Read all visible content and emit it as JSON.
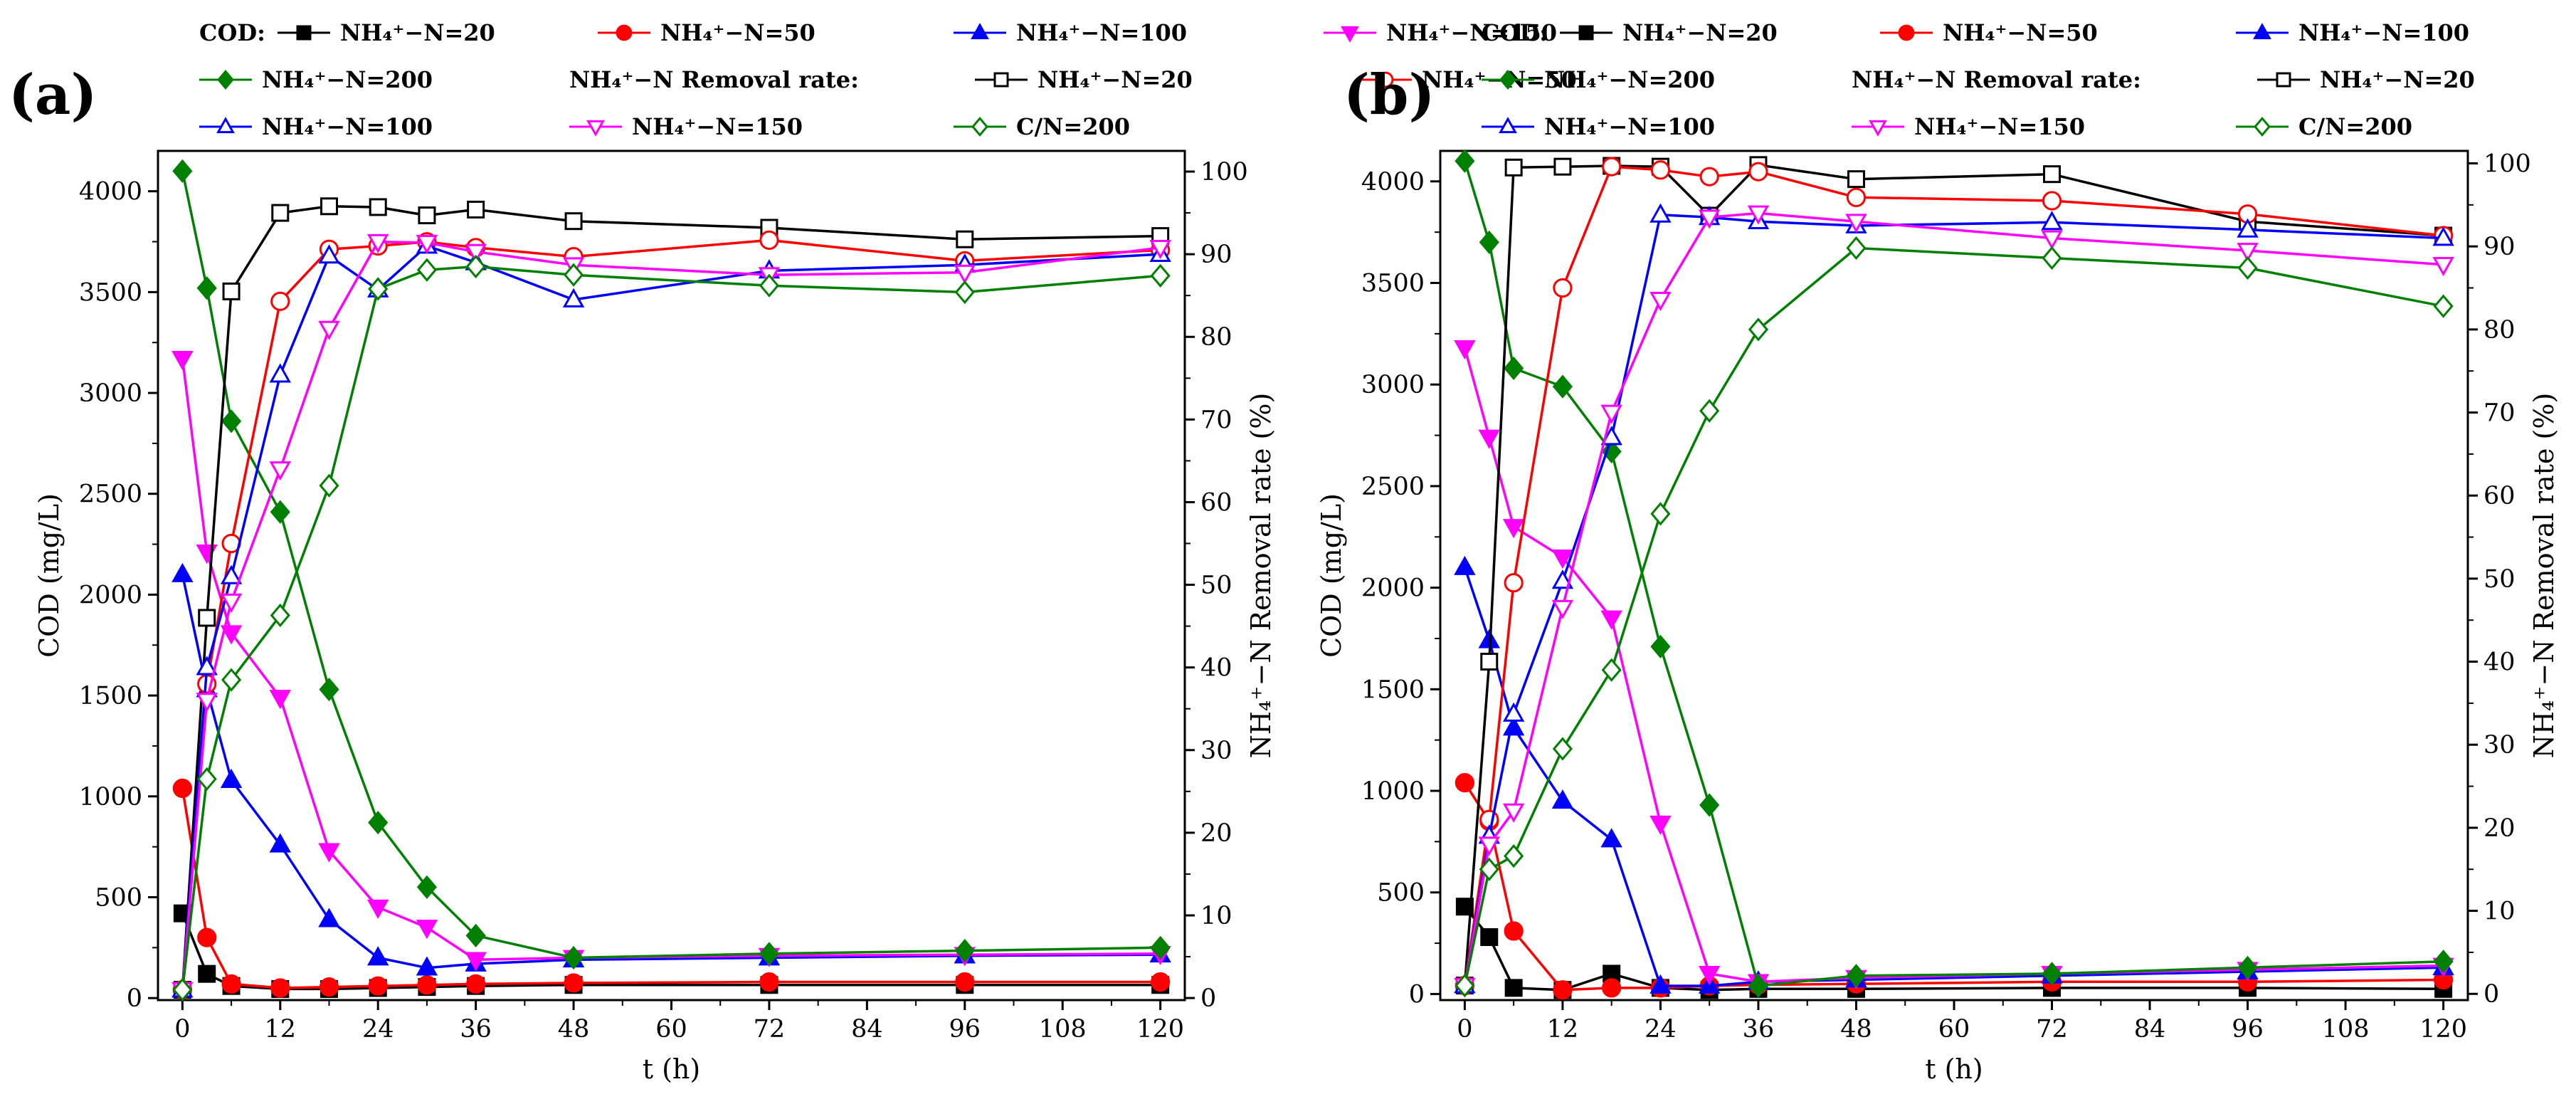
{
  "figure": {
    "panel_labels": [
      "(a)",
      "(b)"
    ]
  },
  "legend": {
    "cod_title": "COD:",
    "removal_title": "NH₄⁺−N Removal rate:",
    "entries": [
      "NH₄⁺−N=20",
      "NH₄⁺−N=50",
      "NH₄⁺−N=100",
      "NH₄⁺−N=150",
      "NH₄⁺−N=200"
    ],
    "removal_last_entry": "C/N=200"
  },
  "chart_data": [
    {
      "type": "line",
      "panel": "(a)",
      "xlabel": "t (h)",
      "ylabel_left": "COD (mg/L)",
      "ylabel_right": "NH₄⁺−N Removal rate (%)",
      "xlim": [
        -3,
        123
      ],
      "ylim_left": [
        -10,
        4200
      ],
      "ylim_right": [
        -0.25,
        102.5
      ],
      "x_ticks": [
        0,
        12,
        24,
        36,
        48,
        60,
        72,
        84,
        96,
        108,
        120
      ],
      "y_ticks_left": [
        0,
        500,
        1000,
        1500,
        2000,
        2500,
        3000,
        3500,
        4000
      ],
      "y_ticks_right": [
        0,
        10,
        20,
        30,
        40,
        50,
        60,
        70,
        80,
        90,
        100
      ],
      "series": [
        {
          "name": "NH₄⁺−N=20",
          "group": "COD",
          "axis": "left",
          "color": "#000000",
          "marker": "square",
          "filled": true,
          "x": [
            0,
            3,
            6,
            12,
            18,
            24,
            30,
            36,
            48,
            72,
            96,
            120
          ],
          "y": [
            420,
            120,
            60,
            45,
            45,
            50,
            55,
            60,
            65,
            65,
            65,
            65
          ]
        },
        {
          "name": "NH₄⁺−N=50",
          "group": "COD",
          "axis": "left",
          "color": "#ff0000",
          "marker": "circle",
          "filled": true,
          "x": [
            0,
            3,
            6,
            12,
            18,
            24,
            30,
            36,
            48,
            72,
            96,
            120
          ],
          "y": [
            1040,
            300,
            70,
            50,
            55,
            60,
            65,
            70,
            75,
            80,
            80,
            80
          ]
        },
        {
          "name": "NH₄⁺−N=100",
          "group": "COD",
          "axis": "left",
          "color": "#0000ff",
          "marker": "triangle",
          "filled": true,
          "x": [
            0,
            3,
            6,
            12,
            18,
            24,
            30,
            36,
            48,
            72,
            96,
            120
          ],
          "y": [
            2100,
            1530,
            1080,
            760,
            390,
            200,
            150,
            170,
            190,
            200,
            210,
            215
          ]
        },
        {
          "name": "NH₄⁺−N=150",
          "group": "COD",
          "axis": "left",
          "color": "#ff00ff",
          "marker": "triangle-down",
          "filled": true,
          "x": [
            0,
            3,
            6,
            12,
            18,
            24,
            30,
            36,
            48,
            72,
            96,
            120
          ],
          "y": [
            3170,
            2210,
            1810,
            1490,
            730,
            450,
            350,
            190,
            200,
            210,
            215,
            220
          ]
        },
        {
          "name": "NH₄⁺−N=200",
          "group": "COD",
          "axis": "left",
          "color": "#008000",
          "marker": "diamond",
          "filled": true,
          "x": [
            0,
            3,
            6,
            12,
            18,
            24,
            30,
            36,
            48,
            72,
            96,
            120
          ],
          "y": [
            4100,
            3520,
            2860,
            2410,
            1530,
            870,
            550,
            310,
            200,
            220,
            235,
            250
          ]
        },
        {
          "name": "NH₄⁺−N=20",
          "group": "Removal",
          "axis": "right",
          "color": "#000000",
          "marker": "square",
          "filled": false,
          "x": [
            0,
            3,
            6,
            12,
            18,
            24,
            30,
            36,
            48,
            72,
            96,
            120
          ],
          "y": [
            1,
            46,
            85.5,
            95,
            95.8,
            95.7,
            94.7,
            95.4,
            94,
            93.2,
            91.8,
            92.2
          ]
        },
        {
          "name": "NH₄⁺−N=50",
          "group": "Removal",
          "axis": "right",
          "color": "#ff0000",
          "marker": "circle",
          "filled": false,
          "x": [
            0,
            3,
            6,
            12,
            18,
            24,
            30,
            36,
            48,
            72,
            96,
            120
          ],
          "y": [
            1,
            38,
            55,
            84.3,
            90.6,
            91,
            91.5,
            90.8,
            89.7,
            91.7,
            89.2,
            90.5
          ]
        },
        {
          "name": "NH₄⁺−N=100",
          "group": "Removal",
          "axis": "right",
          "color": "#0000ff",
          "marker": "triangle",
          "filled": false,
          "x": [
            0,
            3,
            6,
            12,
            18,
            24,
            30,
            36,
            48,
            72,
            96,
            120
          ],
          "y": [
            1,
            40,
            51,
            75.4,
            89.8,
            85.7,
            91,
            89,
            84.5,
            88,
            88.7,
            90
          ]
        },
        {
          "name": "NH₄⁺−N=150",
          "group": "Removal",
          "axis": "right",
          "color": "#ff00ff",
          "marker": "triangle-down",
          "filled": false,
          "x": [
            0,
            3,
            6,
            12,
            18,
            24,
            30,
            36,
            48,
            72,
            96,
            120
          ],
          "y": [
            1,
            36,
            48,
            64,
            81,
            91.5,
            91.4,
            90.3,
            88.7,
            87.5,
            87.8,
            90.8
          ]
        },
        {
          "name": "C/N=200",
          "group": "Removal",
          "axis": "right",
          "color": "#008000",
          "marker": "diamond",
          "filled": false,
          "x": [
            0,
            3,
            6,
            12,
            18,
            24,
            30,
            36,
            48,
            72,
            96,
            120
          ],
          "y": [
            1,
            26.5,
            38.5,
            46.3,
            62,
            85.8,
            88.1,
            88.5,
            87.5,
            86.2,
            85.4,
            87.4
          ]
        }
      ]
    },
    {
      "type": "line",
      "panel": "(b)",
      "xlabel": "t (h)",
      "ylabel_left": "COD (mg/L)",
      "ylabel_right": "NH₄⁺−N Removal rate (%)",
      "xlim": [
        -3,
        123
      ],
      "ylim_left": [
        -30,
        4150
      ],
      "ylim_right": [
        -0.75,
        101.5
      ],
      "x_ticks": [
        0,
        12,
        24,
        36,
        48,
        60,
        72,
        84,
        96,
        108,
        120
      ],
      "y_ticks_left": [
        0,
        500,
        1000,
        1500,
        2000,
        2500,
        3000,
        3500,
        4000
      ],
      "y_ticks_right": [
        0,
        10,
        20,
        30,
        40,
        50,
        60,
        70,
        80,
        90,
        100
      ],
      "series": [
        {
          "name": "NH₄⁺−N=20",
          "group": "COD",
          "axis": "left",
          "color": "#000000",
          "marker": "square",
          "filled": true,
          "x": [
            0,
            3,
            6,
            12,
            18,
            24,
            30,
            36,
            48,
            72,
            96,
            120
          ],
          "y": [
            430,
            280,
            30,
            20,
            100,
            30,
            20,
            25,
            25,
            30,
            30,
            25
          ]
        },
        {
          "name": "NH₄⁺−N=50",
          "group": "COD",
          "axis": "left",
          "color": "#ff0000",
          "marker": "circle",
          "filled": true,
          "x": [
            0,
            3,
            6,
            12,
            18,
            24,
            30,
            36,
            48,
            72,
            96,
            120
          ],
          "y": [
            1040,
            850,
            310,
            20,
            30,
            30,
            40,
            45,
            50,
            60,
            60,
            70
          ]
        },
        {
          "name": "NH₄⁺−N=100",
          "group": "COD",
          "axis": "left",
          "color": "#0000ff",
          "marker": "triangle",
          "filled": true,
          "x": [
            0,
            3,
            6,
            12,
            18,
            24,
            30,
            36,
            48,
            72,
            96,
            120
          ],
          "y": [
            2100,
            1740,
            1310,
            950,
            760,
            40,
            40,
            60,
            70,
            90,
            110,
            130
          ]
        },
        {
          "name": "NH₄⁺−N=150",
          "group": "COD",
          "axis": "left",
          "color": "#ff00ff",
          "marker": "triangle-down",
          "filled": true,
          "x": [
            0,
            3,
            6,
            12,
            18,
            24,
            30,
            36,
            48,
            72,
            96,
            120
          ],
          "y": [
            3180,
            2740,
            2300,
            2150,
            1850,
            840,
            100,
            60,
            80,
            100,
            120,
            140
          ]
        },
        {
          "name": "NH₄⁺−N=200",
          "group": "COD",
          "axis": "left",
          "color": "#008000",
          "marker": "diamond",
          "filled": true,
          "x": [
            0,
            3,
            6,
            12,
            18,
            24,
            30,
            36,
            48,
            72,
            96,
            120
          ],
          "y": [
            4100,
            3700,
            3080,
            2990,
            2670,
            1710,
            930,
            40,
            90,
            100,
            130,
            160
          ]
        },
        {
          "name": "NH₄⁺−N=20",
          "group": "Removal",
          "axis": "right",
          "color": "#000000",
          "marker": "square",
          "filled": false,
          "x": [
            0,
            3,
            6,
            12,
            18,
            24,
            30,
            36,
            48,
            72,
            96,
            120
          ],
          "y": [
            1,
            40,
            99.5,
            99.6,
            99.7,
            99.6,
            93.7,
            99.8,
            98.1,
            98.7,
            93,
            91.3
          ]
        },
        {
          "name": "NH₄⁺‒N=50",
          "group": "Removal",
          "axis": "right",
          "color": "#ff0000",
          "marker": "circle",
          "filled": false,
          "x": [
            0,
            3,
            6,
            12,
            18,
            24,
            30,
            36,
            48,
            72,
            96,
            120
          ],
          "y": [
            1,
            21,
            49.5,
            85,
            99.6,
            99.2,
            98.4,
            99,
            95.9,
            95.5,
            93.9,
            91.3
          ]
        },
        {
          "name": "NH₄⁺−N=100",
          "group": "Removal",
          "axis": "right",
          "color": "#0000ff",
          "marker": "triangle",
          "filled": false,
          "x": [
            0,
            3,
            6,
            12,
            18,
            24,
            30,
            36,
            48,
            72,
            96,
            120
          ],
          "y": [
            1,
            19,
            33.7,
            49.7,
            67,
            93.8,
            93.5,
            93,
            92.5,
            92.9,
            92,
            91
          ]
        },
        {
          "name": "NH₄⁺−N=150",
          "group": "Removal",
          "axis": "right",
          "color": "#ff00ff",
          "marker": "triangle-down",
          "filled": false,
          "x": [
            0,
            3,
            6,
            12,
            18,
            24,
            30,
            36,
            48,
            72,
            96,
            120
          ],
          "y": [
            1,
            18,
            22,
            46.5,
            70,
            83.6,
            93.5,
            94,
            93,
            91,
            89.5,
            87.8
          ]
        },
        {
          "name": "C/N=200",
          "group": "Removal",
          "axis": "right",
          "color": "#008000",
          "marker": "diamond",
          "filled": false,
          "x": [
            0,
            3,
            6,
            12,
            18,
            24,
            30,
            36,
            48,
            72,
            96,
            120
          ],
          "y": [
            1,
            15,
            16.6,
            29.5,
            39,
            57.8,
            70.2,
            80,
            89.8,
            88.6,
            87.4,
            82.8
          ]
        }
      ]
    }
  ]
}
